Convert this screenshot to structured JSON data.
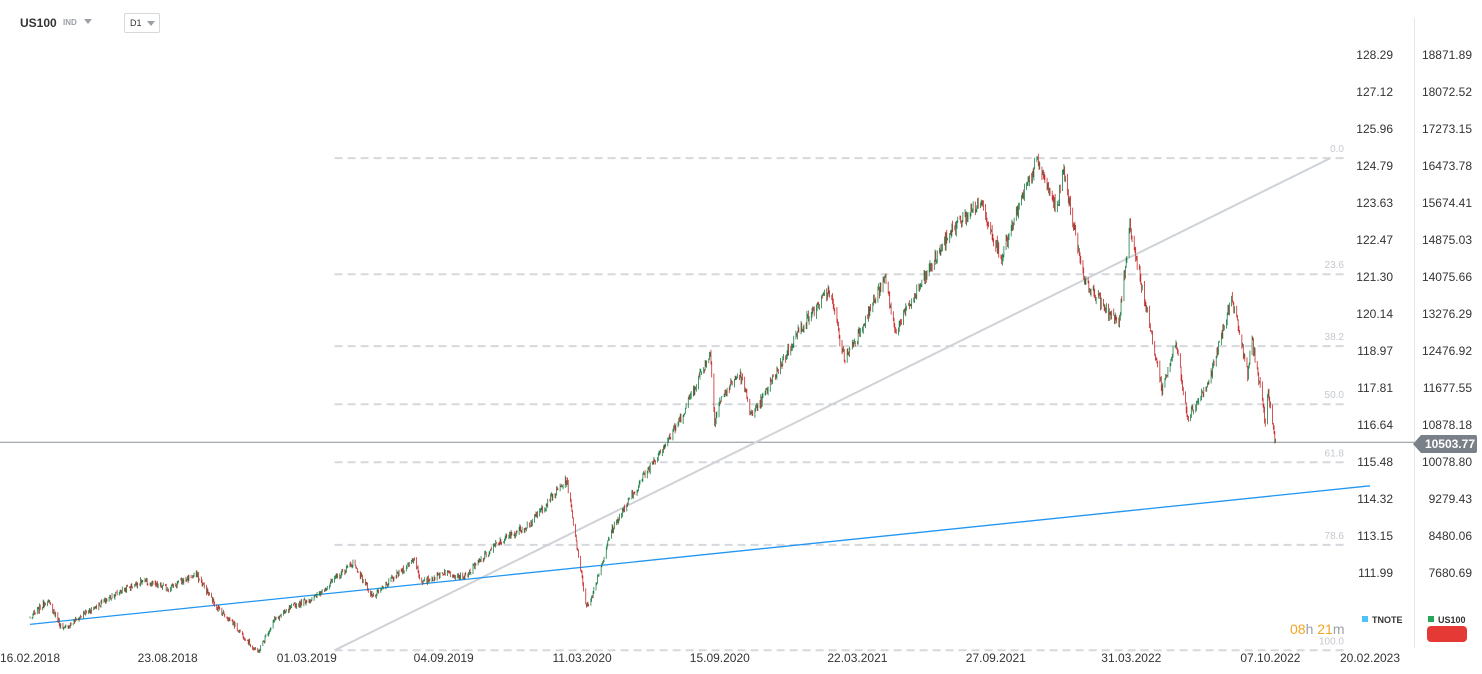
{
  "header": {
    "symbol": "US100",
    "market": "IND",
    "timeframe": "D1"
  },
  "chart_data": {
    "type": "candlestick",
    "symbol": "US100",
    "timeframe": "D1",
    "last_price": "10503.77",
    "left_axis_ticks": [
      "128.29",
      "127.12",
      "125.96",
      "124.79",
      "123.63",
      "122.47",
      "121.30",
      "120.14",
      "118.97",
      "117.81",
      "116.64",
      "115.48",
      "114.32",
      "113.15",
      "111.99"
    ],
    "right_axis_ticks": [
      "18871.89",
      "18072.52",
      "17273.15",
      "16473.78",
      "15674.41",
      "14875.03",
      "14075.66",
      "13276.29",
      "12476.92",
      "11677.55",
      "10878.18",
      "10078.80",
      "9279.43",
      "8480.06",
      "7680.69"
    ],
    "x_axis_ticks": [
      "16.02.2018",
      "23.08.2018",
      "01.03.2019",
      "04.09.2019",
      "11.03.2020",
      "15.09.2020",
      "22.03.2021",
      "27.09.2021",
      "31.03.2022",
      "07.10.2022",
      "20.02.2023"
    ],
    "fib_levels": [
      {
        "label": "0.0",
        "value": 16645
      },
      {
        "label": "23.6",
        "value": 14136
      },
      {
        "label": "38.2",
        "value": 12583
      },
      {
        "label": "50.0",
        "value": 11328
      },
      {
        "label": "61.8",
        "value": 10073
      },
      {
        "label": "78.6",
        "value": 8287
      },
      {
        "label": "100.0",
        "value": 6011
      }
    ],
    "trendlines": [
      {
        "name": "gray-trendline",
        "color": "#cfd3d8",
        "from": {
          "date": "2019-04-08",
          "value": 6011
        },
        "to": {
          "date": "2022-12-28",
          "value": 16645
        }
      },
      {
        "name": "blue-trendline",
        "color": "#2196f3",
        "from": {
          "date": "2018-02-16",
          "value": 6570
        },
        "to": {
          "date": "2023-02-20",
          "value": 9565
        }
      }
    ],
    "anchors": [
      [
        "2018-02-16",
        6700
      ],
      [
        "2018-03-12",
        7100
      ],
      [
        "2018-04-02",
        6450
      ],
      [
        "2018-05-01",
        6800
      ],
      [
        "2018-06-20",
        7300
      ],
      [
        "2018-07-20",
        7500
      ],
      [
        "2018-08-23",
        7350
      ],
      [
        "2018-10-01",
        7650
      ],
      [
        "2018-10-29",
        6950
      ],
      [
        "2018-11-20",
        6600
      ],
      [
        "2018-12-24",
        5950
      ],
      [
        "2019-01-15",
        6650
      ],
      [
        "2019-02-15",
        7000
      ],
      [
        "2019-03-12",
        7150
      ],
      [
        "2019-05-03",
        7900
      ],
      [
        "2019-05-31",
        7150
      ],
      [
        "2019-07-26",
        8000
      ],
      [
        "2019-08-05",
        7450
      ],
      [
        "2019-09-04",
        7700
      ],
      [
        "2019-10-03",
        7600
      ],
      [
        "2019-11-15",
        8300
      ],
      [
        "2019-12-31",
        8750
      ],
      [
        "2020-02-19",
        9700
      ],
      [
        "2020-03-16",
        7050
      ],
      [
        "2020-03-20",
        6960
      ],
      [
        "2020-04-09",
        8000
      ],
      [
        "2020-04-20",
        8600
      ],
      [
        "2020-06-08",
        9900
      ],
      [
        "2020-07-20",
        10900
      ],
      [
        "2020-09-02",
        12450
      ],
      [
        "2020-09-08",
        11000
      ],
      [
        "2020-09-15",
        11400
      ],
      [
        "2020-10-12",
        12000
      ],
      [
        "2020-10-30",
        11050
      ],
      [
        "2020-12-31",
        12900
      ],
      [
        "2021-02-12",
        13800
      ],
      [
        "2021-03-04",
        12300
      ],
      [
        "2021-03-22",
        12800
      ],
      [
        "2021-04-29",
        14050
      ],
      [
        "2021-05-12",
        12900
      ],
      [
        "2021-07-29",
        15100
      ],
      [
        "2021-09-07",
        15700
      ],
      [
        "2021-10-04",
        14500
      ],
      [
        "2021-11-22",
        16600
      ],
      [
        "2021-12-20",
        15500
      ],
      [
        "2021-12-27",
        16450
      ],
      [
        "2022-01-27",
        13950
      ],
      [
        "2022-03-14",
        13050
      ],
      [
        "2022-03-29",
        15200
      ],
      [
        "2022-05-12",
        11650
      ],
      [
        "2022-05-31",
        12650
      ],
      [
        "2022-06-16",
        11050
      ],
      [
        "2022-07-15",
        11800
      ],
      [
        "2022-08-16",
        13650
      ],
      [
        "2022-09-06",
        11950
      ],
      [
        "2022-09-12",
        12750
      ],
      [
        "2022-09-30",
        10950
      ],
      [
        "2022-10-04",
        11600
      ],
      [
        "2022-10-10",
        10880
      ],
      [
        "2022-10-14",
        10503.77
      ]
    ]
  },
  "footer": {
    "countdown_hours": "08",
    "countdown_h_unit": "h",
    "countdown_minutes": "21",
    "countdown_m_unit": "m",
    "legend_tnote": "TNOTE",
    "legend_us100": "US100",
    "tnote_color": "#4fc3f7",
    "us100_color": "#26a65b",
    "up_color": "#1b7d45",
    "down_color": "#c62828"
  }
}
